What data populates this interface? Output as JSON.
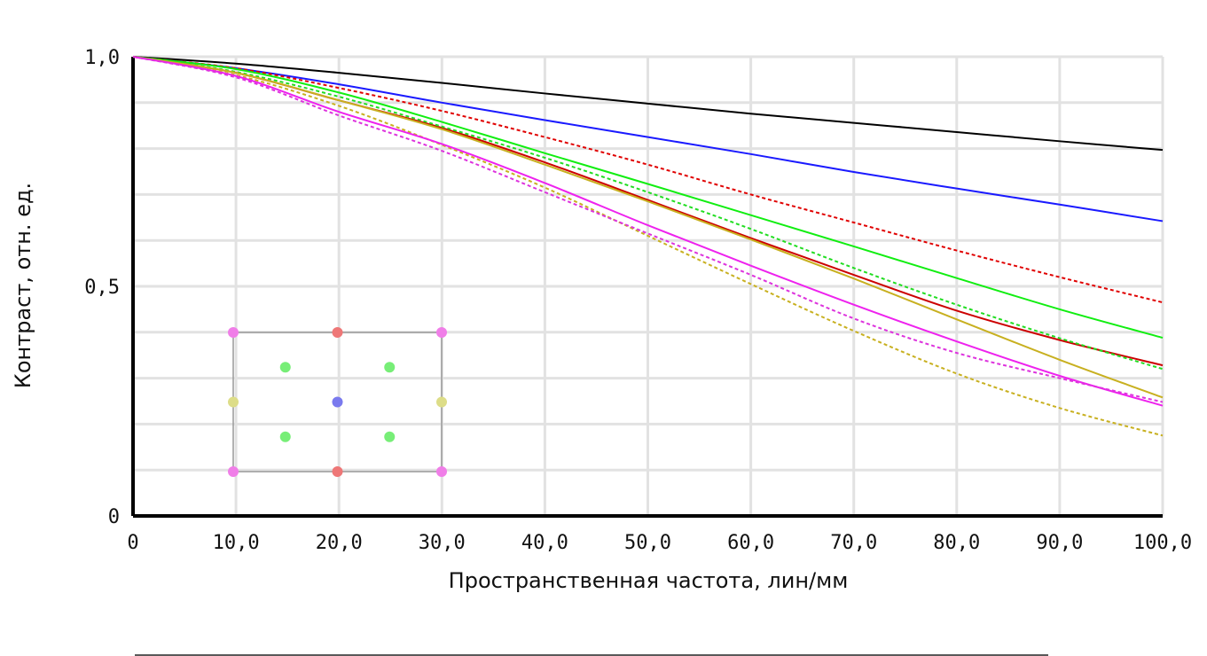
{
  "chart_data": {
    "type": "line",
    "xlabel": "Пространственная частота, лин/мм",
    "ylabel": "Контраст, отн. ед.",
    "xlim": [
      0,
      100
    ],
    "ylim": [
      0,
      1
    ],
    "x_ticks": [
      0,
      10,
      20,
      30,
      40,
      50,
      60,
      70,
      80,
      90,
      100
    ],
    "x_tick_labels": [
      "0",
      "10,0",
      "20,0",
      "30,0",
      "40,0",
      "50,0",
      "60,0",
      "70,0",
      "80,0",
      "90,0",
      "100,0"
    ],
    "y_ticks": [
      0,
      0.5,
      1.0
    ],
    "y_tick_labels": [
      "0",
      "0,5",
      "1,0"
    ],
    "grid": true,
    "x": [
      0,
      10,
      20,
      30,
      40,
      50,
      60,
      70,
      80,
      90,
      100
    ],
    "series": [
      {
        "color": "#000000",
        "style": "solid",
        "values": [
          1.0,
          0.985,
          0.965,
          0.943,
          0.92,
          0.898,
          0.876,
          0.856,
          0.836,
          0.816,
          0.797
        ]
      },
      {
        "color": "#1a1aff",
        "style": "solid",
        "values": [
          1.0,
          0.975,
          0.94,
          0.9,
          0.862,
          0.825,
          0.788,
          0.749,
          0.713,
          0.678,
          0.642
        ]
      },
      {
        "color": "#e00000",
        "style": "dashed",
        "values": [
          1.0,
          0.975,
          0.932,
          0.882,
          0.825,
          0.765,
          0.7,
          0.639,
          0.578,
          0.52,
          0.465
        ]
      },
      {
        "color": "#11ee11",
        "style": "solid",
        "values": [
          1.0,
          0.973,
          0.922,
          0.858,
          0.79,
          0.723,
          0.655,
          0.587,
          0.518,
          0.45,
          0.388
        ]
      },
      {
        "color": "#cc0000",
        "style": "solid",
        "values": [
          1.0,
          0.965,
          0.905,
          0.845,
          0.77,
          0.688,
          0.605,
          0.525,
          0.447,
          0.383,
          0.328
        ]
      },
      {
        "color": "#22dd22",
        "style": "dashed",
        "values": [
          1.0,
          0.967,
          0.913,
          0.848,
          0.78,
          0.705,
          0.625,
          0.54,
          0.46,
          0.387,
          0.32
        ]
      },
      {
        "color": "#c8b020",
        "style": "solid",
        "values": [
          1.0,
          0.965,
          0.905,
          0.842,
          0.765,
          0.685,
          0.602,
          0.517,
          0.428,
          0.34,
          0.258
        ]
      },
      {
        "color": "#c8b020",
        "style": "dashed",
        "values": [
          1.0,
          0.96,
          0.893,
          0.808,
          0.715,
          0.61,
          0.505,
          0.403,
          0.31,
          0.235,
          0.175
        ]
      },
      {
        "color": "#ee22ee",
        "style": "solid",
        "values": [
          1.0,
          0.958,
          0.88,
          0.81,
          0.725,
          0.633,
          0.545,
          0.46,
          0.38,
          0.305,
          0.24
        ]
      },
      {
        "color": "#dd33dd",
        "style": "dashed",
        "values": [
          1.0,
          0.955,
          0.872,
          0.795,
          0.705,
          0.615,
          0.525,
          0.43,
          0.355,
          0.3,
          0.248
        ]
      }
    ],
    "inset": {
      "frame_color": "#999999",
      "points": [
        {
          "u": 0,
          "v": 0,
          "color": "#f07ee8"
        },
        {
          "u": 0.5,
          "v": 0,
          "color": "#ee7777"
        },
        {
          "u": 1,
          "v": 0,
          "color": "#f07ee8"
        },
        {
          "u": 0.25,
          "v": 0.25,
          "color": "#77ee77"
        },
        {
          "u": 0.75,
          "v": 0.25,
          "color": "#77ee77"
        },
        {
          "u": 0,
          "v": 0.5,
          "color": "#dddd88"
        },
        {
          "u": 0.5,
          "v": 0.5,
          "color": "#7a7aee"
        },
        {
          "u": 1,
          "v": 0.5,
          "color": "#dddd88"
        },
        {
          "u": 0.25,
          "v": 0.75,
          "color": "#77ee77"
        },
        {
          "u": 0.75,
          "v": 0.75,
          "color": "#77ee77"
        },
        {
          "u": 0,
          "v": 1,
          "color": "#f07ee8"
        },
        {
          "u": 0.5,
          "v": 1,
          "color": "#ee7777"
        },
        {
          "u": 1,
          "v": 1,
          "color": "#f07ee8"
        }
      ]
    }
  }
}
